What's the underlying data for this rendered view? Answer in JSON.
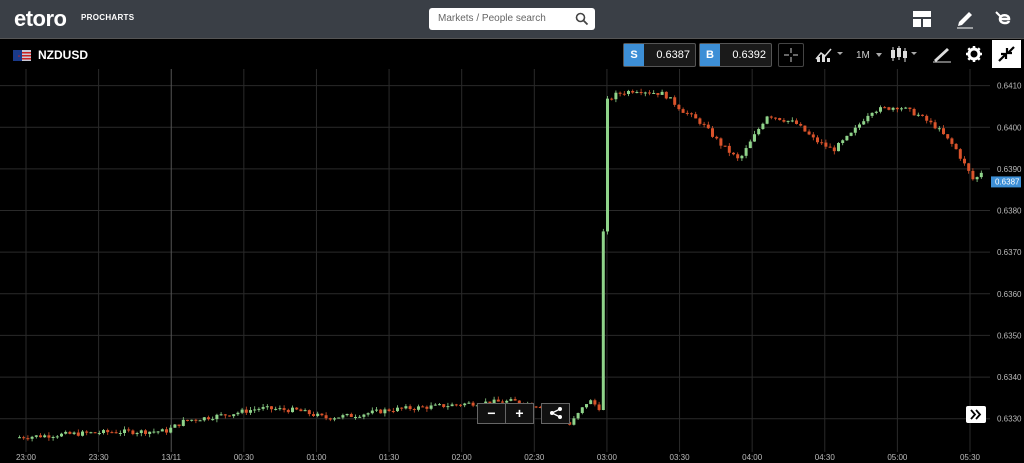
{
  "app": {
    "logo_text": "etoro",
    "logo_sub": "PROCHARTS"
  },
  "search": {
    "placeholder": "Markets / People search"
  },
  "top_icons": [
    "layout-icon",
    "pencil-icon",
    "etoro-e-icon"
  ],
  "instrument": {
    "symbol": "NZDUSD",
    "flag": "nz-us-flag-icon"
  },
  "quotes": {
    "sell_label": "S",
    "sell_value": "0.6387",
    "buy_label": "B",
    "buy_value": "0.6392"
  },
  "toolbar": {
    "timeframe": "1M",
    "icons": [
      "crosshair-icon",
      "indicators-icon",
      "candlestick-icon",
      "drawing-tools-icon",
      "gear-icon",
      "collapse-icon"
    ]
  },
  "colors": {
    "up": "#8fd38a",
    "down": "#d9532b",
    "price_tag_bg": "#3d8fd6",
    "grid": "#2a2a2a"
  },
  "chart_data": {
    "type": "candlestick",
    "symbol": "NZDUSD",
    "interval": "1M",
    "last_price": "0.6387",
    "y_ticks": [
      "0.6410",
      "0.6400",
      "0.6390",
      "0.6380",
      "0.6370",
      "0.6360",
      "0.6350",
      "0.6340",
      "0.6330"
    ],
    "x_ticks": [
      "23:00",
      "23:30",
      "13/11",
      "00:30",
      "01:00",
      "01:30",
      "02:00",
      "02:30",
      "03:00",
      "03:30",
      "04:00",
      "04:30",
      "05:00",
      "05:30"
    ],
    "ylim": [
      0.6322,
      0.6416
    ],
    "grid": true,
    "close_path": [
      [
        0.0,
        0.63255
      ],
      [
        0.05,
        0.63262
      ],
      [
        0.1,
        0.63268
      ],
      [
        0.16,
        0.6327
      ],
      [
        0.18,
        0.63295
      ],
      [
        0.225,
        0.6331
      ],
      [
        0.26,
        0.63325
      ],
      [
        0.3,
        0.6332
      ],
      [
        0.33,
        0.63302
      ],
      [
        0.36,
        0.63308
      ],
      [
        0.4,
        0.63322
      ],
      [
        0.45,
        0.6333
      ],
      [
        0.49,
        0.63338
      ],
      [
        0.53,
        0.63342
      ],
      [
        0.56,
        0.6333
      ],
      [
        0.59,
        0.63285
      ],
      [
        0.61,
        0.63345
      ],
      [
        0.622,
        0.63325
      ],
      [
        0.628,
        0.6406
      ],
      [
        0.64,
        0.6408
      ],
      [
        0.66,
        0.6409
      ],
      [
        0.69,
        0.6408
      ],
      [
        0.71,
        0.6404
      ],
      [
        0.73,
        0.6401
      ],
      [
        0.75,
        0.6396
      ],
      [
        0.77,
        0.6392
      ],
      [
        0.8,
        0.6403
      ],
      [
        0.83,
        0.6401
      ],
      [
        0.85,
        0.6397
      ],
      [
        0.87,
        0.63945
      ],
      [
        0.89,
        0.63985
      ],
      [
        0.91,
        0.6404
      ],
      [
        0.94,
        0.6405
      ],
      [
        0.96,
        0.6403
      ],
      [
        0.98,
        0.64
      ],
      [
        1.0,
        0.6395
      ],
      [
        1.02,
        0.6387
      ],
      [
        1.03,
        0.639
      ]
    ]
  },
  "controls": {
    "zoom_out": "−",
    "zoom_in": "+"
  }
}
